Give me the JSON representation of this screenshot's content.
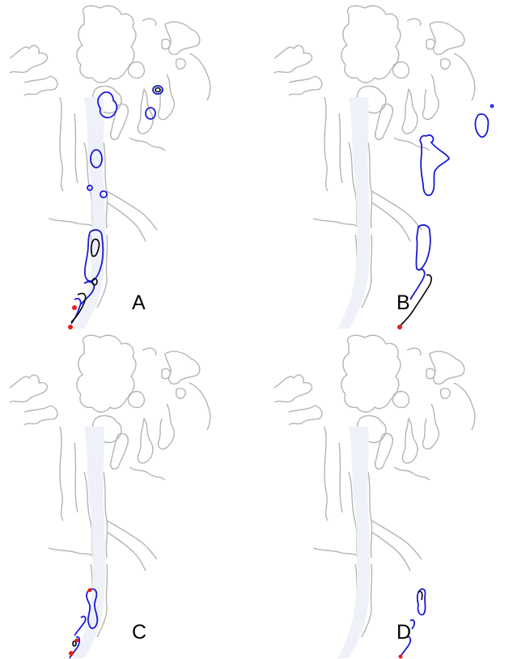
{
  "panels": [
    {
      "label": "A"
    },
    {
      "label": "B"
    },
    {
      "label": "C"
    },
    {
      "label": "D"
    }
  ],
  "colors": {
    "coastline": "#b4b4b4",
    "water_fill": "#eef1f7",
    "contour_outer": "#1a1ad6",
    "contour_inner": "#000000",
    "marker": "#e8201c"
  }
}
